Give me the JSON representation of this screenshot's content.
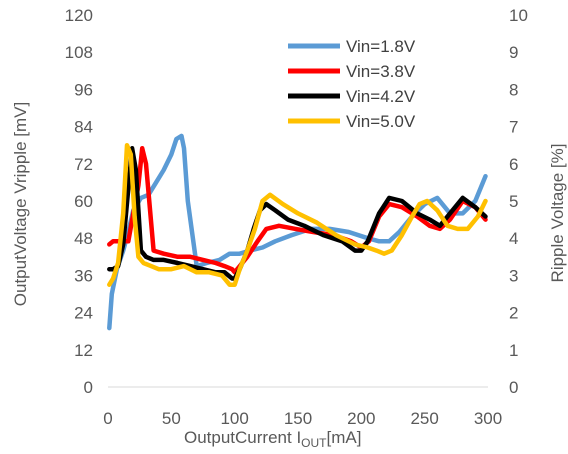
{
  "chart_data": {
    "type": "line",
    "x_ticks": [
      "0",
      "50",
      "100",
      "150",
      "200",
      "250",
      "300"
    ],
    "y_left_ticks": [
      "0",
      "12",
      "24",
      "36",
      "48",
      "60",
      "72",
      "84",
      "96",
      "108",
      "120"
    ],
    "y_right_ticks": [
      "0",
      "1",
      "2",
      "3",
      "4",
      "5",
      "6",
      "7",
      "8",
      "9",
      "10"
    ],
    "xlim": [
      0,
      300
    ],
    "ylim_left": [
      0,
      120
    ],
    "ylim_right": [
      0,
      10
    ],
    "xlabel_main": "OutputCurrent  I",
    "xlabel_sub": "OUT",
    "xlabel_unit": "[mA]",
    "ylabel_left": "OutputVoltage  Vripple [mV]",
    "ylabel_right": "Ripple Voltage [%]",
    "grid": false,
    "legend_position": "top-right",
    "series": [
      {
        "name": "Vin=1.8V",
        "color": "#5B9BD5",
        "x": [
          1,
          3,
          7,
          12,
          16,
          20,
          26,
          32,
          38,
          44,
          50,
          54,
          58,
          60,
          63,
          70,
          78,
          88,
          96,
          104,
          112,
          122,
          132,
          145,
          160,
          175,
          190,
          205,
          214,
          222,
          230,
          240,
          250,
          260,
          270,
          280,
          290,
          298
        ],
        "values": [
          19,
          30,
          38,
          44,
          50,
          57,
          61,
          62,
          66,
          70,
          75,
          80,
          81,
          77,
          60,
          39,
          40,
          41,
          43,
          43,
          44,
          45,
          47,
          49,
          51,
          51,
          50,
          48,
          47,
          47,
          50,
          55,
          59,
          61,
          56,
          56,
          60,
          68
        ]
      },
      {
        "name": "Vin=3.8V",
        "color": "#FF0000",
        "x": [
          1,
          4,
          8,
          12,
          16,
          20,
          24,
          27,
          30,
          36,
          44,
          55,
          65,
          75,
          85,
          92,
          98,
          100,
          104,
          110,
          118,
          125,
          135,
          148,
          162,
          178,
          192,
          200,
          206,
          214,
          222,
          232,
          244,
          254,
          262,
          270,
          280,
          290,
          298
        ],
        "values": [
          46,
          47,
          47,
          47,
          47,
          56,
          65,
          77,
          72,
          44,
          43,
          42,
          42,
          41,
          40,
          39,
          38,
          37,
          39,
          42,
          47,
          51,
          52,
          51,
          50,
          49,
          47,
          45,
          47,
          55,
          59,
          58,
          55,
          52,
          51,
          54,
          60,
          58,
          54
        ]
      },
      {
        "name": "Vin=4.2V",
        "color": "#000000",
        "x": [
          1,
          4,
          8,
          12,
          16,
          19,
          22,
          26,
          30,
          36,
          44,
          55,
          65,
          75,
          85,
          92,
          98,
          100,
          104,
          110,
          115,
          120,
          125,
          132,
          142,
          155,
          170,
          185,
          195,
          200,
          205,
          214,
          222,
          232,
          244,
          254,
          262,
          270,
          280,
          290,
          298
        ],
        "values": [
          38,
          38,
          39,
          46,
          64,
          77,
          70,
          44,
          42,
          41,
          41,
          40,
          39,
          38,
          37,
          37,
          35,
          35,
          38,
          44,
          51,
          57,
          59,
          57,
          54,
          52,
          49,
          47,
          44,
          44,
          47,
          56,
          61,
          60,
          56,
          54,
          52,
          56,
          61,
          58,
          55
        ]
      },
      {
        "name": "Vin=5.0V",
        "color": "#FFC000",
        "x": [
          1,
          4,
          8,
          12,
          15,
          18,
          21,
          24,
          28,
          34,
          40,
          50,
          60,
          70,
          80,
          90,
          96,
          100,
          104,
          110,
          116,
          122,
          128,
          138,
          150,
          165,
          180,
          195,
          205,
          212,
          218,
          224,
          232,
          240,
          246,
          252,
          260,
          268,
          276,
          284,
          292,
          298
        ],
        "values": [
          33,
          35,
          40,
          56,
          78,
          75,
          55,
          42,
          40,
          39,
          38,
          38,
          39,
          37,
          37,
          36,
          33,
          33,
          38,
          44,
          51,
          60,
          62,
          59,
          56,
          53,
          49,
          46,
          45,
          44,
          43,
          44,
          49,
          55,
          59,
          60,
          57,
          52,
          51,
          51,
          55,
          60
        ]
      }
    ]
  }
}
